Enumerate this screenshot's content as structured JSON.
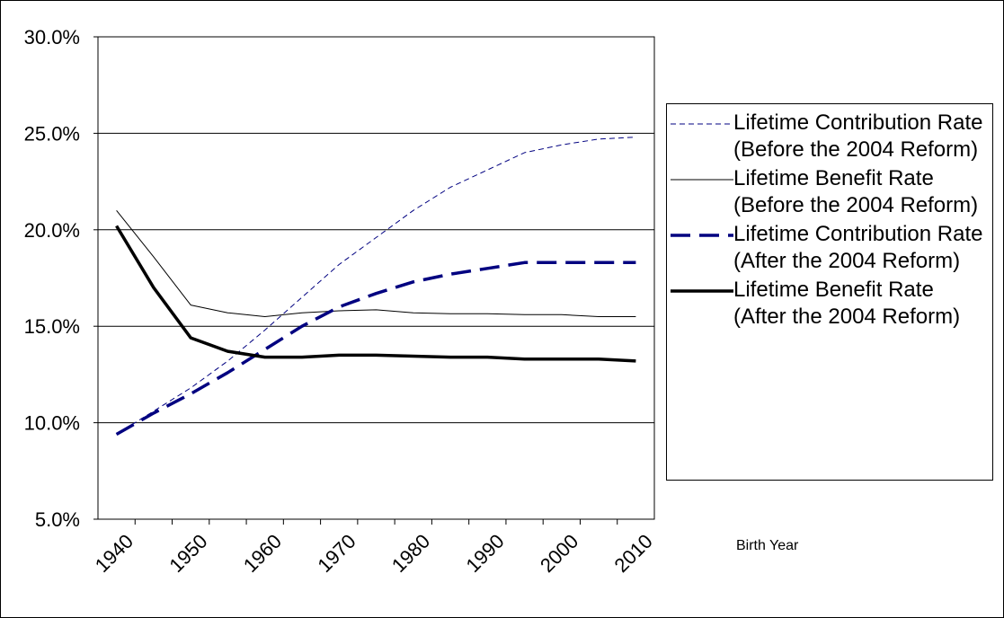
{
  "chart_data": {
    "type": "line",
    "x_label": "Birth Year",
    "categories": [
      "1940",
      null,
      "1950",
      null,
      "1960",
      null,
      "1970",
      null,
      "1980",
      null,
      "1990",
      null,
      "2000",
      null,
      "2010"
    ],
    "ylim": [
      5,
      30
    ],
    "yticks": [
      {
        "value": 5,
        "label": "5.0%"
      },
      {
        "value": 10,
        "label": "10.0%"
      },
      {
        "value": 15,
        "label": "15.0%"
      },
      {
        "value": 20,
        "label": "20.0%"
      },
      {
        "value": 25,
        "label": "25.0%"
      },
      {
        "value": 30,
        "label": "30.0%"
      }
    ],
    "grid": true,
    "series": [
      {
        "name": "Lifetime Contribution Rate (Before the 2004 Reform)",
        "color": "#000080",
        "dashed": true,
        "width": 1,
        "values": [
          9.4,
          10.6,
          11.8,
          13.2,
          14.8,
          16.5,
          18.2,
          19.6,
          21.0,
          22.2,
          23.1,
          24.0,
          24.4,
          24.7,
          24.8
        ]
      },
      {
        "name": "Lifetime Benefit Rate (Before the 2004 Reform)",
        "color": "#000000",
        "dashed": false,
        "width": 1,
        "values": [
          21.0,
          18.6,
          16.1,
          15.7,
          15.5,
          15.7,
          15.8,
          15.85,
          15.7,
          15.65,
          15.65,
          15.6,
          15.6,
          15.5,
          15.5
        ]
      },
      {
        "name": "Lifetime Contribution Rate (After the 2004 Reform)",
        "color": "#000080",
        "dashed": true,
        "width": 3.5,
        "values": [
          9.4,
          10.5,
          11.5,
          12.6,
          13.8,
          15.0,
          16.0,
          16.7,
          17.3,
          17.7,
          18.0,
          18.3,
          18.3,
          18.3,
          18.3
        ]
      },
      {
        "name": "Lifetime Benefit Rate (After the 2004 Reform)",
        "color": "#000000",
        "dashed": false,
        "width": 3.5,
        "values": [
          20.2,
          17.0,
          14.4,
          13.7,
          13.4,
          13.4,
          13.5,
          13.5,
          13.45,
          13.4,
          13.4,
          13.3,
          13.3,
          13.3,
          13.2
        ]
      }
    ]
  }
}
